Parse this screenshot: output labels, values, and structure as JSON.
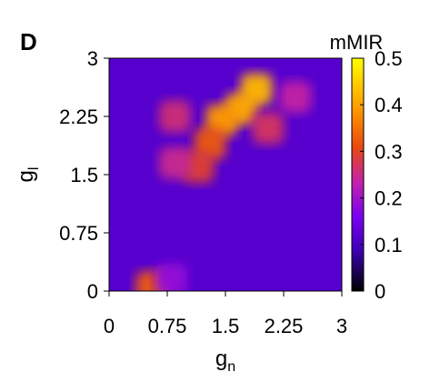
{
  "panel_label": "D",
  "chart_data": {
    "type": "heatmap",
    "title": "",
    "xlabel": "g",
    "xlabel_sub": "n",
    "ylabel": "g",
    "ylabel_sub": "l",
    "xlim": [
      0,
      3
    ],
    "ylim": [
      0,
      3
    ],
    "x_ticks": [
      0,
      0.75,
      1.5,
      2.25,
      3
    ],
    "x_tick_labels": [
      "0",
      "0.75",
      "1.5",
      "2.25",
      "3"
    ],
    "y_ticks": [
      0,
      0.75,
      1.5,
      2.25,
      3
    ],
    "y_tick_labels": [
      "0",
      "0.75",
      "1.5",
      "2.25",
      "3"
    ],
    "colorbar": {
      "title": "mMIR",
      "range": [
        0,
        0.5
      ],
      "ticks": [
        0,
        0.1,
        0.2,
        0.3,
        0.4,
        0.5
      ],
      "tick_labels": [
        "0",
        "0.1",
        "0.2",
        "0.3",
        "0.4",
        "0.5"
      ],
      "colormap": [
        "#000000",
        "#3f00b8",
        "#7a00f0",
        "#c020b0",
        "#e84a10",
        "#ff9800",
        "#ffd000",
        "#ffff00"
      ]
    },
    "grid": false,
    "background_value": 0.1,
    "regions": [
      {
        "x": 1.9,
        "y": 2.6,
        "value": 0.4
      },
      {
        "x": 1.7,
        "y": 2.35,
        "value": 0.38
      },
      {
        "x": 1.45,
        "y": 2.2,
        "value": 0.36
      },
      {
        "x": 1.3,
        "y": 1.9,
        "value": 0.3
      },
      {
        "x": 1.15,
        "y": 1.6,
        "value": 0.27
      },
      {
        "x": 2.05,
        "y": 2.1,
        "value": 0.25
      },
      {
        "x": 0.85,
        "y": 2.25,
        "value": 0.24
      },
      {
        "x": 0.85,
        "y": 1.65,
        "value": 0.23
      },
      {
        "x": 2.4,
        "y": 2.5,
        "value": 0.22
      },
      {
        "x": 0.55,
        "y": 0.05,
        "value": 0.3
      },
      {
        "x": 0.8,
        "y": 0.15,
        "value": 0.17
      }
    ]
  }
}
